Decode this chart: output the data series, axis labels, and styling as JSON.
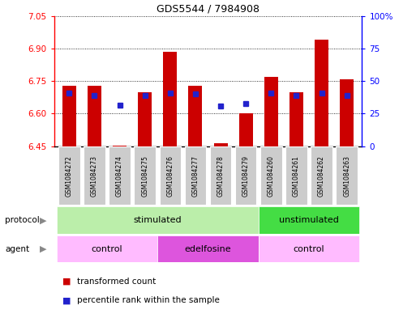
{
  "title": "GDS5544 / 7984908",
  "samples": [
    "GSM1084272",
    "GSM1084273",
    "GSM1084274",
    "GSM1084275",
    "GSM1084276",
    "GSM1084277",
    "GSM1084278",
    "GSM1084279",
    "GSM1084260",
    "GSM1084261",
    "GSM1084262",
    "GSM1084263"
  ],
  "bar_values": [
    6.73,
    6.73,
    6.454,
    6.7,
    6.885,
    6.73,
    6.465,
    6.6,
    6.77,
    6.7,
    6.94,
    6.76
  ],
  "bar_bottom": 6.45,
  "blue_values": [
    6.695,
    6.685,
    6.64,
    6.685,
    6.695,
    6.69,
    6.635,
    6.645,
    6.695,
    6.685,
    6.695,
    6.685
  ],
  "ylim_left": [
    6.45,
    7.05
  ],
  "ylim_right": [
    0,
    100
  ],
  "yticks_left": [
    6.45,
    6.6,
    6.75,
    6.9,
    7.05
  ],
  "yticks_right": [
    0,
    25,
    50,
    75,
    100
  ],
  "ytick_labels_right": [
    "0",
    "25",
    "50",
    "75",
    "100%"
  ],
  "bar_color": "#cc0000",
  "blue_color": "#2222cc",
  "protocol_groups": [
    {
      "label": "stimulated",
      "start": 0,
      "end": 7,
      "color": "#bbeeaa"
    },
    {
      "label": "unstimulated",
      "start": 8,
      "end": 11,
      "color": "#44dd44"
    }
  ],
  "agent_groups": [
    {
      "label": "control",
      "start": 0,
      "end": 3,
      "color": "#ffbbff"
    },
    {
      "label": "edelfosine",
      "start": 4,
      "end": 7,
      "color": "#dd55dd"
    },
    {
      "label": "control",
      "start": 8,
      "end": 11,
      "color": "#ffbbff"
    }
  ],
  "legend_red_label": "transformed count",
  "legend_blue_label": "percentile rank within the sample",
  "protocol_label": "protocol",
  "agent_label": "agent",
  "bg_color": "#ffffff",
  "label_bg_color": "#cccccc",
  "sample_box_edgecolor": "#999999"
}
